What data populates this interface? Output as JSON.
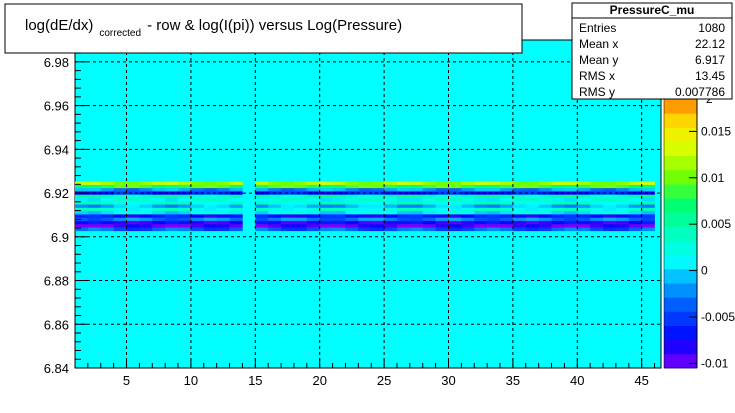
{
  "chart_data": {
    "type": "heatmap",
    "title_parts": {
      "main": "log(dE/dx)",
      "sub": "corrected",
      "rest": "- row & log(I(pi)) versus Log(Pressure)"
    },
    "xlabel": "",
    "ylabel": "",
    "xlim": [
      1,
      46.5
    ],
    "ylim": [
      6.84,
      6.99
    ],
    "x_ticks": [
      "5",
      "10",
      "15",
      "20",
      "25",
      "30",
      "35",
      "40",
      "45"
    ],
    "y_ticks": [
      "6.84",
      "6.86",
      "6.88",
      "6.9",
      "6.92",
      "6.94",
      "6.96",
      "6.98"
    ],
    "z_ticks": [
      "-0.01",
      "-0.005",
      "0",
      "0.005",
      "0.01",
      "0.015"
    ],
    "z_partial_label": "2",
    "z_range": [
      -0.0105,
      0.02
    ],
    "background_color": "#00ffff",
    "x_gap_columns": [
      14
    ],
    "bands": [
      {
        "y": 6.9245,
        "value": 0.0115
      },
      {
        "y": 6.923,
        "value": 0.0085
      },
      {
        "y": 6.9215,
        "value": -0.002
      },
      {
        "y": 6.92,
        "value": -0.0065
      },
      {
        "y": 6.9185,
        "value": 0.004
      },
      {
        "y": 6.917,
        "value": 0.002
      },
      {
        "y": 6.9155,
        "value": 0.003
      },
      {
        "y": 6.914,
        "value": -0.001
      },
      {
        "y": 6.9125,
        "value": 0.0025
      },
      {
        "y": 6.911,
        "value": 0.001
      },
      {
        "y": 6.9095,
        "value": -0.007
      },
      {
        "y": 6.908,
        "value": -0.003
      },
      {
        "y": 6.9065,
        "value": -0.008
      },
      {
        "y": 6.905,
        "value": -0.0095
      },
      {
        "y": 6.9035,
        "value": -0.004
      }
    ]
  },
  "stats": {
    "title": "PressureC_mu",
    "rows": [
      {
        "label": "Entries",
        "value": "1080"
      },
      {
        "label": "Mean x",
        "value": "22.12"
      },
      {
        "label": "Mean y",
        "value": "6.917"
      },
      {
        "label": "RMS x",
        "value": "13.45"
      },
      {
        "label": "RMS y",
        "value": "0.007786"
      }
    ]
  }
}
